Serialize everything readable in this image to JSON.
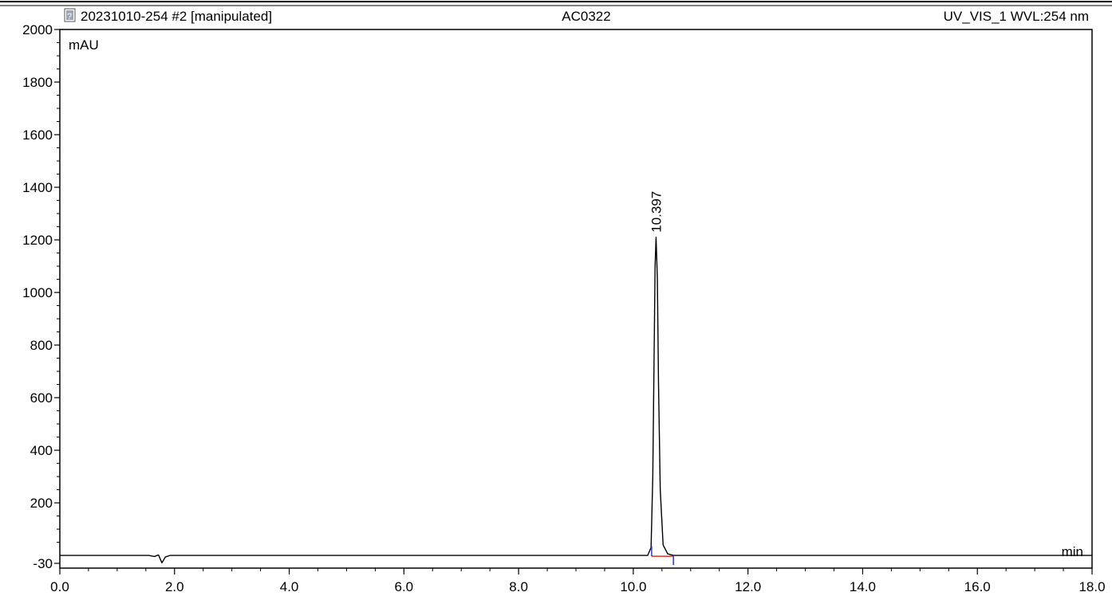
{
  "header": {
    "sample_title": "20231010-254 #2 [manipulated]",
    "sample_name": "AC0322",
    "channel": "UV_VIS_1 WVL:254 nm",
    "doc_icon": "document-icon"
  },
  "chart_data": {
    "type": "line",
    "title": "",
    "xlabel": "min",
    "ylabel": "mAU",
    "xlim": [
      0.0,
      18.0
    ],
    "ylim": [
      -30,
      2000
    ],
    "x_ticks": [
      0.0,
      2.0,
      4.0,
      6.0,
      8.0,
      10.0,
      12.0,
      14.0,
      16.0,
      18.0
    ],
    "x_tick_labels": [
      "0.0",
      "2.0",
      "4.0",
      "6.0",
      "8.0",
      "10.0",
      "12.0",
      "14.0",
      "16.0",
      "18.0"
    ],
    "y_ticks": [
      -30,
      200,
      400,
      600,
      800,
      1000,
      1200,
      1400,
      1600,
      1800,
      2000
    ],
    "y_tick_labels": [
      "-30",
      "200",
      "400",
      "600",
      "800",
      "1000",
      "1200",
      "1400",
      "1600",
      "1800",
      "2000"
    ],
    "grid": false,
    "baseline": 0,
    "series": [
      {
        "color": "#000000",
        "points": [
          [
            0.0,
            0
          ],
          [
            1.55,
            0
          ],
          [
            1.65,
            -4
          ],
          [
            1.72,
            2
          ],
          [
            1.78,
            -28
          ],
          [
            1.84,
            -6
          ],
          [
            1.92,
            0
          ],
          [
            10.25,
            0
          ],
          [
            10.31,
            30
          ],
          [
            10.34,
            300
          ],
          [
            10.36,
            700
          ],
          [
            10.38,
            1100
          ],
          [
            10.397,
            1210
          ],
          [
            10.42,
            1050
          ],
          [
            10.44,
            650
          ],
          [
            10.47,
            250
          ],
          [
            10.52,
            40
          ],
          [
            10.6,
            6
          ],
          [
            10.7,
            0
          ],
          [
            18.0,
            0
          ]
        ]
      }
    ],
    "peaks": [
      {
        "retention_time": 10.397,
        "label": "10.397",
        "height": 1210,
        "start": 10.32,
        "end": 10.7
      }
    ],
    "colors": {
      "trace": "#000000",
      "integration_baseline": "#e03020",
      "peak_delimiter": "#2a3cc8",
      "axis": "#000000"
    }
  }
}
